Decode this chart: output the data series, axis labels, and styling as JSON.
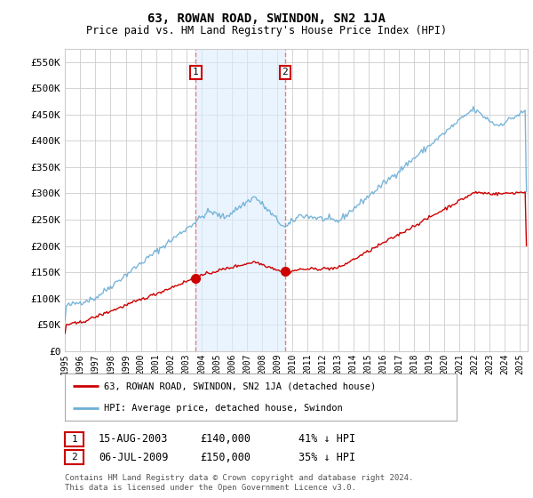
{
  "title": "63, ROWAN ROAD, SWINDON, SN2 1JA",
  "subtitle": "Price paid vs. HM Land Registry's House Price Index (HPI)",
  "legend_line1": "63, ROWAN ROAD, SWINDON, SN2 1JA (detached house)",
  "legend_line2": "HPI: Average price, detached house, Swindon",
  "transaction1_date": "15-AUG-2003",
  "transaction1_price": "£140,000",
  "transaction1_hpi": "41% ↓ HPI",
  "transaction1_year": 2003.62,
  "transaction1_value": 140000,
  "transaction2_date": "06-JUL-2009",
  "transaction2_price": "£150,000",
  "transaction2_hpi": "35% ↓ HPI",
  "transaction2_year": 2009.51,
  "transaction2_value": 150000,
  "footer": "Contains HM Land Registry data © Crown copyright and database right 2024.\nThis data is licensed under the Open Government Licence v3.0.",
  "background_color": "#ffffff",
  "plot_bg_color": "#ffffff",
  "grid_color": "#cccccc",
  "hpi_line_color": "#6baed6",
  "price_line_color": "#cc0000",
  "vline_color": "#e08080",
  "highlight_fill": "#ddeeff",
  "ylim": [
    0,
    575000
  ],
  "yticks": [
    0,
    50000,
    100000,
    150000,
    200000,
    250000,
    300000,
    350000,
    400000,
    450000,
    500000,
    550000
  ],
  "ytick_labels": [
    "£0",
    "£50K",
    "£100K",
    "£150K",
    "£200K",
    "£250K",
    "£300K",
    "£350K",
    "£400K",
    "£450K",
    "£500K",
    "£550K"
  ],
  "xlim_start": 1995.0,
  "xlim_end": 2025.5,
  "xtick_years": [
    1995,
    1996,
    1997,
    1998,
    1999,
    2000,
    2001,
    2002,
    2003,
    2004,
    2005,
    2006,
    2007,
    2008,
    2009,
    2010,
    2011,
    2012,
    2013,
    2014,
    2015,
    2016,
    2017,
    2018,
    2019,
    2020,
    2021,
    2022,
    2023,
    2024,
    2025
  ]
}
